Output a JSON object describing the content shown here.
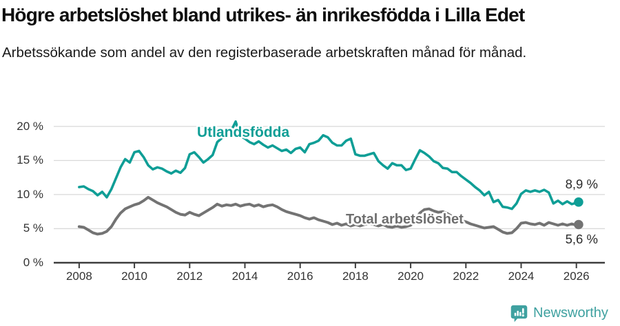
{
  "header": {
    "title": "Högre arbetslöshet bland utrikes- än inrikesfödda i Lilla Edet",
    "subtitle": "Arbetssökande som andel av den registerbaserade arbetskraften månad för månad."
  },
  "chart_data": {
    "type": "line",
    "title": "Högre arbetslöshet bland utrikes- än inrikesfödda i Lilla Edet",
    "xlabel": "",
    "ylabel": "",
    "grid": "horizontal",
    "xlim": [
      2007.08,
      2027.03
    ],
    "ylim": [
      0,
      22.4
    ],
    "y_ticks": [
      {
        "v": 0,
        "label": "0 %"
      },
      {
        "v": 5,
        "label": "5 %"
      },
      {
        "v": 10,
        "label": "10 %"
      },
      {
        "v": 15,
        "label": "15 %"
      },
      {
        "v": 20,
        "label": "20 %"
      }
    ],
    "x_ticks": [
      {
        "v": 2008,
        "label": "2008"
      },
      {
        "v": 2010,
        "label": "2010"
      },
      {
        "v": 2012,
        "label": "2012"
      },
      {
        "v": 2014,
        "label": "2014"
      },
      {
        "v": 2016,
        "label": "2016"
      },
      {
        "v": 2018,
        "label": "2018"
      },
      {
        "v": 2020,
        "label": "2020"
      },
      {
        "v": 2022,
        "label": "2022"
      },
      {
        "v": 2024,
        "label": "2024"
      },
      {
        "v": 2026,
        "label": "2026"
      }
    ],
    "series": [
      {
        "name": "Utlandsfödda",
        "color": "#0f9e96",
        "end_label": "8,9 %",
        "end_value": 8.9,
        "start_year": 2008,
        "step_months": 2,
        "values": [
          11.1,
          11.2,
          10.8,
          10.5,
          9.9,
          10.4,
          9.6,
          10.8,
          12.4,
          14.0,
          15.2,
          14.7,
          16.2,
          16.4,
          15.5,
          14.3,
          13.7,
          14.0,
          13.8,
          13.4,
          13.1,
          13.5,
          13.2,
          13.9,
          15.9,
          16.2,
          15.5,
          14.7,
          15.2,
          15.8,
          17.7,
          18.3,
          18.6,
          19.3,
          20.7,
          18.6,
          18.2,
          17.7,
          17.4,
          17.8,
          17.3,
          16.9,
          17.2,
          16.8,
          16.4,
          16.6,
          16.1,
          16.7,
          16.9,
          16.2,
          17.4,
          17.6,
          17.9,
          18.7,
          18.4,
          17.6,
          17.2,
          17.2,
          17.9,
          18.2,
          15.9,
          15.7,
          15.7,
          15.9,
          16.1,
          14.9,
          14.3,
          13.8,
          14.6,
          14.3,
          14.3,
          13.6,
          13.8,
          15.2,
          16.5,
          16.1,
          15.6,
          14.9,
          14.6,
          13.9,
          13.8,
          13.3,
          13.3,
          12.7,
          12.2,
          11.7,
          11.1,
          10.6,
          9.9,
          10.4,
          8.9,
          9.2,
          8.2,
          8.1,
          7.9,
          8.7,
          10.1,
          10.6,
          10.4,
          10.6,
          10.4,
          10.7,
          10.3,
          8.7,
          9.1,
          8.6,
          9.0,
          8.6,
          8.8
        ],
        "end_point": [
          2026.08,
          8.9
        ]
      },
      {
        "name": "Total arbetslöshet",
        "color": "#737373",
        "end_label": "5,6 %",
        "end_value": 5.6,
        "start_year": 2008,
        "step_months": 2,
        "values": [
          5.3,
          5.2,
          4.8,
          4.4,
          4.2,
          4.3,
          4.6,
          5.3,
          6.4,
          7.3,
          7.9,
          8.2,
          8.5,
          8.7,
          9.1,
          9.6,
          9.2,
          8.8,
          8.5,
          8.2,
          7.8,
          7.4,
          7.1,
          7.0,
          7.4,
          7.1,
          6.9,
          7.3,
          7.7,
          8.1,
          8.6,
          8.3,
          8.5,
          8.4,
          8.6,
          8.3,
          8.5,
          8.6,
          8.3,
          8.5,
          8.2,
          8.4,
          8.5,
          8.2,
          7.8,
          7.5,
          7.3,
          7.1,
          6.9,
          6.6,
          6.4,
          6.6,
          6.3,
          6.1,
          5.9,
          5.6,
          5.8,
          5.5,
          5.7,
          5.4,
          5.6,
          5.4,
          5.6,
          5.8,
          5.6,
          5.4,
          5.6,
          5.3,
          5.2,
          5.4,
          5.2,
          5.3,
          5.5,
          6.2,
          7.3,
          7.8,
          7.9,
          7.6,
          7.4,
          7.5,
          7.2,
          6.8,
          6.5,
          6.2,
          6.0,
          5.7,
          5.5,
          5.3,
          5.1,
          5.2,
          5.3,
          4.9,
          4.5,
          4.3,
          4.4,
          5.0,
          5.8,
          5.9,
          5.7,
          5.6,
          5.8,
          5.5,
          5.9,
          5.7,
          5.5,
          5.7,
          5.5,
          5.7,
          5.5
        ],
        "end_point": [
          2026.08,
          5.6
        ]
      }
    ],
    "style": {
      "gridline_color": "#d9d9d9",
      "axis_color": "#3d3d3d",
      "tick_label_color": "#333333"
    }
  },
  "footer": {
    "brand": "Newsworthy",
    "brand_color": "#3fa1a0"
  }
}
